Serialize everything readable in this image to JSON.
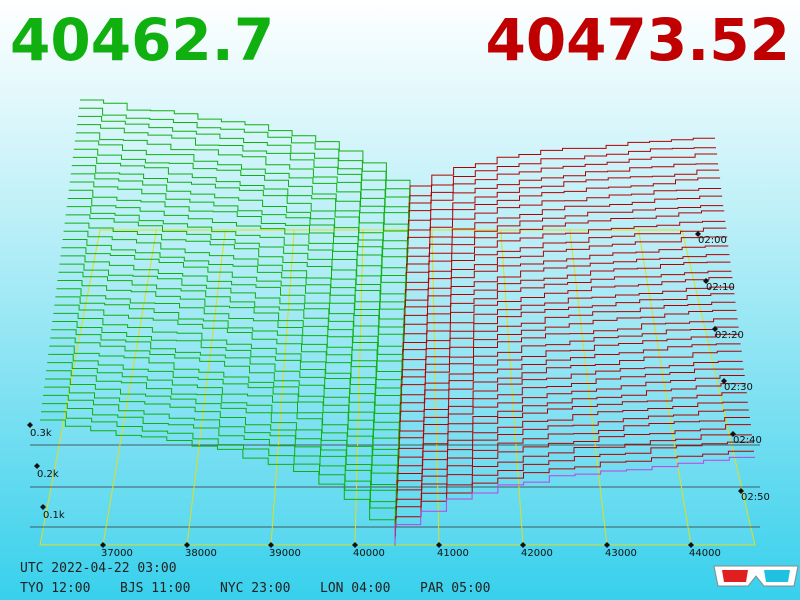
{
  "header": {
    "bid": "40462.7",
    "ask": "40473.52"
  },
  "axes": {
    "price_ticks": [
      "37000",
      "38000",
      "39000",
      "40000",
      "41000",
      "42000",
      "43000",
      "44000"
    ],
    "depth_ticks": [
      "0.3k",
      "0.2k",
      "0.1k"
    ],
    "time_ticks": [
      "02:00",
      "02:10",
      "02:20",
      "02:30",
      "02:40",
      "02:50"
    ]
  },
  "footer": {
    "utc": "UTC 2022-04-22 03:00",
    "zones": [
      "TYO 12:00",
      "BJS 11:00",
      "NYC 23:00",
      "LON 04:00",
      "PAR 05:00"
    ]
  }
}
